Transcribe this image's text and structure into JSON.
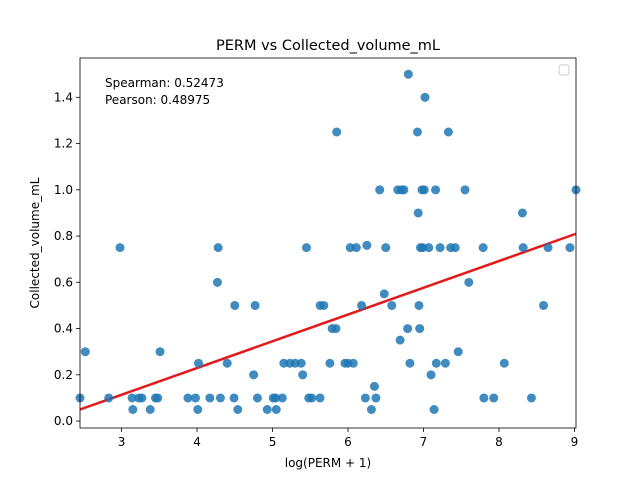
{
  "chart_data": {
    "type": "scatter",
    "title": "PERM vs Collected_volume_mL",
    "xlabel": "log(PERM + 1)",
    "ylabel": "Collected_volume_mL",
    "xlim": [
      2.45,
      9.02
    ],
    "ylim": [
      -0.03,
      1.57
    ],
    "xticks": [
      3,
      4,
      5,
      6,
      7,
      8,
      9
    ],
    "xtick_labels": [
      "3",
      "4",
      "5",
      "6",
      "7",
      "8",
      "9"
    ],
    "yticks": [
      0.0,
      0.2,
      0.4,
      0.6,
      0.8,
      1.0,
      1.2,
      1.4
    ],
    "ytick_labels": [
      "0.0",
      "0.2",
      "0.4",
      "0.6",
      "0.8",
      "1.0",
      "1.2",
      "1.4"
    ],
    "grid": false,
    "legend": {
      "position": "top-right",
      "entries": []
    },
    "annotations": [
      "Spearman: 0.52473",
      "Pearson: 0.48975"
    ],
    "colors": {
      "points": "#1f77b4",
      "fit_line": "#e31a1c"
    },
    "fit_line": {
      "x": [
        2.45,
        9.02
      ],
      "y": [
        0.05,
        0.81
      ]
    },
    "points": [
      {
        "x": 2.45,
        "y": 0.1
      },
      {
        "x": 2.52,
        "y": 0.3
      },
      {
        "x": 2.83,
        "y": 0.1
      },
      {
        "x": 2.98,
        "y": 0.75
      },
      {
        "x": 3.14,
        "y": 0.1
      },
      {
        "x": 3.15,
        "y": 0.05
      },
      {
        "x": 3.23,
        "y": 0.1
      },
      {
        "x": 3.27,
        "y": 0.1
      },
      {
        "x": 3.38,
        "y": 0.05
      },
      {
        "x": 3.45,
        "y": 0.1
      },
      {
        "x": 3.48,
        "y": 0.1
      },
      {
        "x": 3.51,
        "y": 0.3
      },
      {
        "x": 3.88,
        "y": 0.1
      },
      {
        "x": 3.98,
        "y": 0.1
      },
      {
        "x": 4.01,
        "y": 0.05
      },
      {
        "x": 4.02,
        "y": 0.25
      },
      {
        "x": 4.17,
        "y": 0.1
      },
      {
        "x": 4.28,
        "y": 0.75
      },
      {
        "x": 4.27,
        "y": 0.6
      },
      {
        "x": 4.31,
        "y": 0.1
      },
      {
        "x": 4.4,
        "y": 0.25
      },
      {
        "x": 4.49,
        "y": 0.1
      },
      {
        "x": 4.5,
        "y": 0.5
      },
      {
        "x": 4.54,
        "y": 0.05
      },
      {
        "x": 4.75,
        "y": 0.2
      },
      {
        "x": 4.77,
        "y": 0.5
      },
      {
        "x": 4.8,
        "y": 0.1
      },
      {
        "x": 4.93,
        "y": 0.05
      },
      {
        "x": 5.01,
        "y": 0.1
      },
      {
        "x": 5.04,
        "y": 0.1
      },
      {
        "x": 5.05,
        "y": 0.05
      },
      {
        "x": 5.13,
        "y": 0.1
      },
      {
        "x": 5.15,
        "y": 0.25
      },
      {
        "x": 5.23,
        "y": 0.25
      },
      {
        "x": 5.3,
        "y": 0.25
      },
      {
        "x": 5.38,
        "y": 0.25
      },
      {
        "x": 5.4,
        "y": 0.2
      },
      {
        "x": 5.45,
        "y": 0.75
      },
      {
        "x": 5.48,
        "y": 0.1
      },
      {
        "x": 5.52,
        "y": 0.1
      },
      {
        "x": 5.63,
        "y": 0.1
      },
      {
        "x": 5.63,
        "y": 0.5
      },
      {
        "x": 5.68,
        "y": 0.5
      },
      {
        "x": 5.76,
        "y": 0.25
      },
      {
        "x": 5.79,
        "y": 0.4
      },
      {
        "x": 5.84,
        "y": 0.4
      },
      {
        "x": 5.85,
        "y": 1.25
      },
      {
        "x": 5.96,
        "y": 0.25
      },
      {
        "x": 6.0,
        "y": 0.25
      },
      {
        "x": 6.03,
        "y": 0.75
      },
      {
        "x": 6.07,
        "y": 0.25
      },
      {
        "x": 6.11,
        "y": 0.75
      },
      {
        "x": 6.18,
        "y": 0.5
      },
      {
        "x": 6.23,
        "y": 0.1
      },
      {
        "x": 6.25,
        "y": 0.76
      },
      {
        "x": 6.31,
        "y": 0.05
      },
      {
        "x": 6.35,
        "y": 0.15
      },
      {
        "x": 6.37,
        "y": 0.1
      },
      {
        "x": 6.42,
        "y": 1.0
      },
      {
        "x": 6.48,
        "y": 0.55
      },
      {
        "x": 6.5,
        "y": 0.75
      },
      {
        "x": 6.58,
        "y": 0.5
      },
      {
        "x": 6.66,
        "y": 1.0
      },
      {
        "x": 6.69,
        "y": 0.35
      },
      {
        "x": 6.71,
        "y": 1.0
      },
      {
        "x": 6.74,
        "y": 1.0
      },
      {
        "x": 6.79,
        "y": 0.4
      },
      {
        "x": 6.8,
        "y": 1.5
      },
      {
        "x": 6.82,
        "y": 0.25
      },
      {
        "x": 6.92,
        "y": 1.25
      },
      {
        "x": 6.93,
        "y": 0.9
      },
      {
        "x": 6.94,
        "y": 0.5
      },
      {
        "x": 6.95,
        "y": 0.4
      },
      {
        "x": 6.96,
        "y": 0.75
      },
      {
        "x": 6.98,
        "y": 1.0
      },
      {
        "x": 6.99,
        "y": 0.75
      },
      {
        "x": 7.01,
        "y": 1.0
      },
      {
        "x": 7.02,
        "y": 1.4
      },
      {
        "x": 7.07,
        "y": 0.75
      },
      {
        "x": 7.1,
        "y": 0.2
      },
      {
        "x": 7.14,
        "y": 0.05
      },
      {
        "x": 7.16,
        "y": 1.0
      },
      {
        "x": 7.17,
        "y": 0.25
      },
      {
        "x": 7.22,
        "y": 0.75
      },
      {
        "x": 7.29,
        "y": 0.25
      },
      {
        "x": 7.33,
        "y": 1.25
      },
      {
        "x": 7.36,
        "y": 0.75
      },
      {
        "x": 7.42,
        "y": 0.75
      },
      {
        "x": 7.46,
        "y": 0.3
      },
      {
        "x": 7.55,
        "y": 1.0
      },
      {
        "x": 7.6,
        "y": 0.6
      },
      {
        "x": 7.79,
        "y": 0.75
      },
      {
        "x": 7.8,
        "y": 0.1
      },
      {
        "x": 7.93,
        "y": 0.1
      },
      {
        "x": 8.07,
        "y": 0.25
      },
      {
        "x": 8.31,
        "y": 0.9
      },
      {
        "x": 8.32,
        "y": 0.75
      },
      {
        "x": 8.43,
        "y": 0.1
      },
      {
        "x": 8.59,
        "y": 0.5
      },
      {
        "x": 8.65,
        "y": 0.75
      },
      {
        "x": 8.94,
        "y": 0.75
      },
      {
        "x": 9.02,
        "y": 1.0
      }
    ]
  }
}
